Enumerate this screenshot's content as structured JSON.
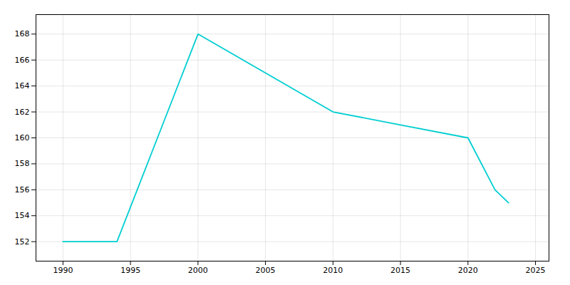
{
  "chart_data": {
    "type": "line",
    "x": [
      1990,
      1994,
      2000,
      2010,
      2015,
      2020,
      2022,
      2023
    ],
    "values": [
      152,
      152,
      168,
      162,
      161,
      160,
      156,
      155
    ],
    "color": "#00CED1",
    "xlim": [
      1988,
      2026
    ],
    "ylim": [
      150.5,
      169.5
    ],
    "xticks": [
      1990,
      1995,
      2000,
      2005,
      2010,
      2015,
      2020,
      2025
    ],
    "yticks": [
      152,
      154,
      156,
      158,
      160,
      162,
      164,
      166,
      168
    ],
    "grid": true
  }
}
